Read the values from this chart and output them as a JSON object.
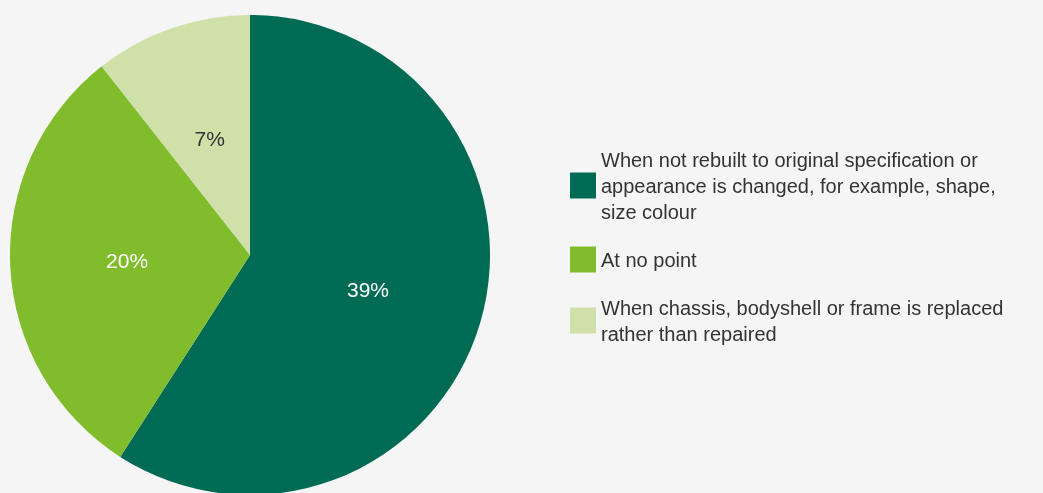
{
  "chart_data": {
    "type": "pie",
    "categories": [
      "When not rebuilt to original specification or appearance is changed, for example, shape, size colour",
      "At no point",
      "When chassis, bodyshell or frame is replaced rather than repaired"
    ],
    "values": [
      39,
      20,
      7
    ],
    "colors": [
      "#006b54",
      "#80bc2b",
      "#cfe0a8"
    ],
    "value_labels": [
      "39%",
      "20%",
      "7%"
    ],
    "legend": "right"
  }
}
